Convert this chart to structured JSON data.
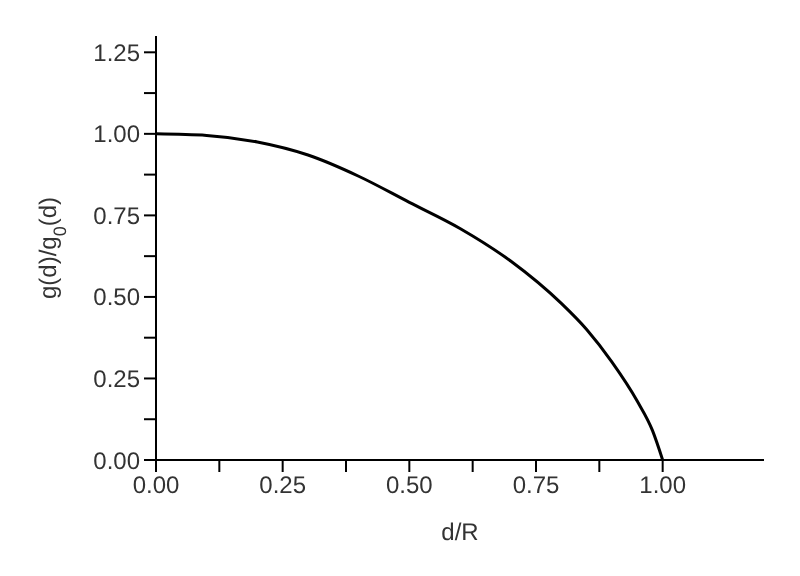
{
  "chart_data": {
    "type": "line",
    "xlabel": "d/R",
    "ylabel": "g(d)/g$_{0}$(d)",
    "xlim": [
      0,
      1.2
    ],
    "ylim": [
      0,
      1.3
    ],
    "xticks": [
      {
        "value": 0,
        "label": "0.00"
      },
      {
        "value": 0.125,
        "label": null
      },
      {
        "value": 0.25,
        "label": "0.25"
      },
      {
        "value": 0.375,
        "label": null
      },
      {
        "value": 0.5,
        "label": "0.50"
      },
      {
        "value": 0.625,
        "label": null
      },
      {
        "value": 0.75,
        "label": "0.75"
      },
      {
        "value": 0.875,
        "label": null
      },
      {
        "value": 1,
        "label": "1.00"
      }
    ],
    "yticks": [
      {
        "value": 0,
        "label": "0.00"
      },
      {
        "value": 0.125,
        "label": null
      },
      {
        "value": 0.25,
        "label": "0.25"
      },
      {
        "value": 0.375,
        "label": null
      },
      {
        "value": 0.5,
        "label": "0.50"
      },
      {
        "value": 0.625,
        "label": null
      },
      {
        "value": 0.75,
        "label": "0.75"
      },
      {
        "value": 0.875,
        "label": null
      },
      {
        "value": 1,
        "label": "1.00"
      },
      {
        "value": 1.125,
        "label": null
      },
      {
        "value": 1.25,
        "label": "1.25"
      }
    ],
    "grid": false,
    "marker": "none",
    "line_style": "solid",
    "x": [
      0,
      0.1,
      0.2,
      0.3,
      0.4,
      0.5,
      0.6,
      0.7,
      0.8,
      0.85,
      0.9,
      0.95,
      0.98,
      1
    ],
    "series": [
      {
        "color": "#000000",
        "values": [
          1,
          0.995,
          0.975,
          0.935,
          0.87,
          0.79,
          0.71,
          0.61,
          0.48,
          0.4,
          0.3,
          0.18,
          0.09,
          0
        ]
      }
    ]
  }
}
